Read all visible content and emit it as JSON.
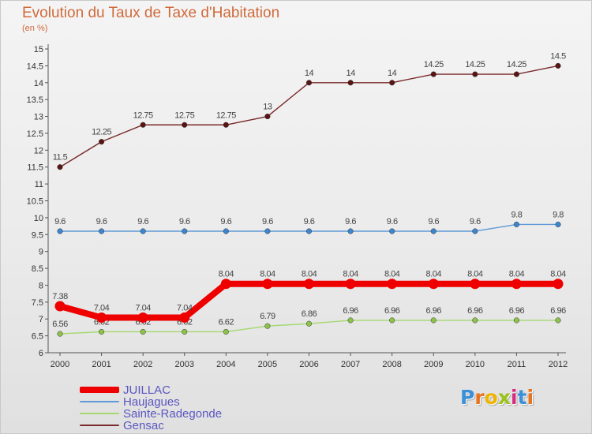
{
  "header": {
    "title": "Evolution du Taux de Taxe d'Habitation",
    "subtitle": "(en %)"
  },
  "logo": {
    "text": "Proxiti",
    "letter_colors": [
      "#3a8fd8",
      "#e8731c",
      "#f0b400",
      "#9bc21b",
      "#d62c7e",
      "#3a8fd8",
      "#e8731c"
    ]
  },
  "chart_data": {
    "type": "line",
    "title": "Evolution du Taux de Taxe d'Habitation",
    "subtitle": "(en %)",
    "x": [
      "2000",
      "2001",
      "2002",
      "2003",
      "2004",
      "2005",
      "2006",
      "2007",
      "2008",
      "2009",
      "2010",
      "2011",
      "2012"
    ],
    "ylim": [
      6,
      15
    ],
    "ytick_step": 0.5,
    "yticks": [
      "6",
      "6.5",
      "7",
      "7.5",
      "8",
      "8.5",
      "9",
      "9.5",
      "10",
      "10.5",
      "11",
      "11.5",
      "12",
      "12.5",
      "13",
      "13.5",
      "14",
      "14.5",
      "15"
    ],
    "grid": false,
    "legend_position": "bottom-left",
    "series": [
      {
        "name": "JUILLAC",
        "color": "#ee0000",
        "emphasis": true,
        "values": [
          7.38,
          7.04,
          7.04,
          7.04,
          8.04,
          8.04,
          8.04,
          8.04,
          8.04,
          8.04,
          8.04,
          8.04,
          8.04
        ],
        "labels": [
          "7.38",
          "7.04",
          "7.04",
          "7.04",
          "8.04",
          "8.04",
          "8.04",
          "8.04",
          "8.04",
          "8.04",
          "8.04",
          "8.04",
          "8.04"
        ]
      },
      {
        "name": "Haujagues",
        "color": "#5f9ad6",
        "marker_color": "#3d86cf",
        "values": [
          9.6,
          9.6,
          9.6,
          9.6,
          9.6,
          9.6,
          9.6,
          9.6,
          9.6,
          9.6,
          9.6,
          9.8,
          9.8
        ],
        "labels": [
          "9.6",
          "9.6",
          "9.6",
          "9.6",
          "9.6",
          "9.6",
          "9.6",
          "9.6",
          "9.6",
          "9.6",
          "9.6",
          "9.8",
          "9.8"
        ]
      },
      {
        "name": "Sainte-Radegonde",
        "color": "#a4d86f",
        "marker_color": "#8cc24a",
        "values": [
          6.56,
          6.62,
          6.62,
          6.62,
          6.62,
          6.79,
          6.86,
          6.96,
          6.96,
          6.96,
          6.96,
          6.96,
          6.96
        ],
        "labels": [
          "6.56",
          "6.62",
          "6.62",
          "6.62",
          "6.62",
          "6.79",
          "6.86",
          "6.96",
          "6.96",
          "6.96",
          "6.96",
          "6.96",
          "6.96"
        ]
      },
      {
        "name": "Gensac",
        "color": "#7a2a2a",
        "marker_color": "#5a1414",
        "values": [
          11.5,
          12.25,
          12.75,
          12.75,
          12.75,
          13,
          14,
          14,
          14,
          14.25,
          14.25,
          14.25,
          14.5
        ],
        "labels": [
          "11.5",
          "12.25",
          "12.75",
          "12.75",
          "12.75",
          "13",
          "14",
          "14",
          "14",
          "14.25",
          "14.25",
          "14.25",
          "14.5"
        ]
      }
    ]
  }
}
